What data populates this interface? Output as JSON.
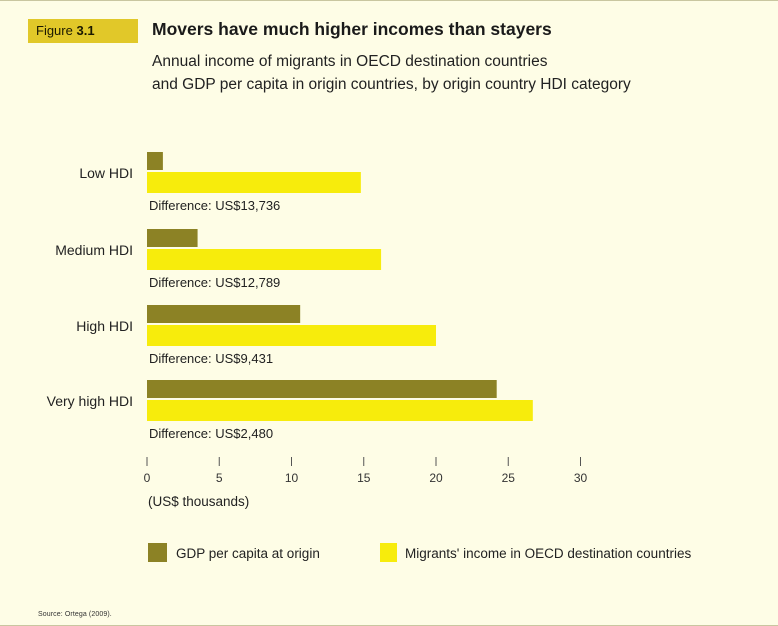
{
  "figure_label": "Figure",
  "figure_number": "3.1",
  "title": "Movers have much higher incomes than stayers",
  "subtitle_lines": [
    "Annual income of migrants in OECD destination countries",
    "and GDP per capita in origin countries, by origin country HDI category"
  ],
  "source": "Source: Ortega (2009).",
  "chart_data": {
    "type": "bar",
    "orientation": "horizontal",
    "categories": [
      "Low HDI",
      "Medium HDI",
      "High HDI",
      "Very high HDI"
    ],
    "series": [
      {
        "name": "GDP per capita at origin",
        "values": [
          1.1,
          3.5,
          10.6,
          24.2
        ],
        "color": "#8c8225"
      },
      {
        "name": "Migrants' income in OECD destination countries",
        "values": [
          14.8,
          16.2,
          20.0,
          26.7
        ],
        "color": "#f7ec0c"
      }
    ],
    "annotations": [
      "Difference: US$13,736",
      "Difference: US$12,789",
      "Difference: US$9,431",
      "Difference: US$2,480"
    ],
    "xlabel": "(US$ thousands)",
    "xlim": [
      0,
      30
    ],
    "xticks": [
      0,
      5,
      10,
      15,
      20,
      25,
      30
    ],
    "grid": false,
    "legend": "bottom"
  }
}
